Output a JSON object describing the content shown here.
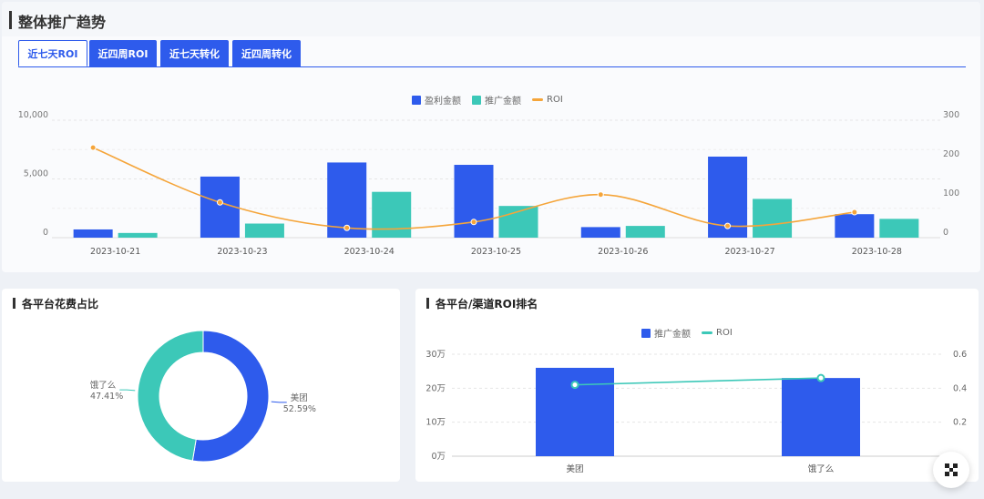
{
  "trend": {
    "title": "整体推广趋势",
    "tabs": [
      {
        "label": "近七天ROI",
        "active": true
      },
      {
        "label": "近四周ROI",
        "active": false
      },
      {
        "label": "近七天转化",
        "active": false
      },
      {
        "label": "近四周转化",
        "active": false
      }
    ],
    "legend": [
      "盈利金额",
      "推广金额",
      "ROI"
    ]
  },
  "pie_card": {
    "title": "各平台花费占比"
  },
  "rank_card": {
    "title": "各平台/渠道ROI排名",
    "legend": [
      "推广金额",
      "ROI"
    ]
  },
  "colors": {
    "blue": "#2e5bec",
    "teal": "#3cc8b8",
    "orange": "#f5a53a"
  },
  "chart_data": [
    {
      "type": "bar",
      "categories": [
        "2023-10-21",
        "2023-10-23",
        "2023-10-24",
        "2023-10-25",
        "2023-10-26",
        "2023-10-27",
        "2023-10-28"
      ],
      "series": [
        {
          "name": "盈利金额",
          "type": "bar",
          "axis": "left",
          "values": [
            700,
            5200,
            6400,
            6200,
            900,
            6900,
            2000
          ]
        },
        {
          "name": "推广金额",
          "type": "bar",
          "axis": "left",
          "values": [
            400,
            1200,
            3900,
            2700,
            1000,
            3300,
            1600
          ]
        },
        {
          "name": "ROI",
          "type": "line",
          "axis": "right",
          "values": [
            230,
            90,
            25,
            40,
            110,
            30,
            65
          ]
        }
      ],
      "y_left": {
        "ticks": [
          "0",
          "5,000",
          "10,000"
        ],
        "range": [
          0,
          10000
        ]
      },
      "y_right": {
        "ticks": [
          "0",
          "100",
          "200",
          "300"
        ],
        "range": [
          0,
          300
        ]
      }
    },
    {
      "type": "pie",
      "donut": true,
      "slices": [
        {
          "name": "美团",
          "value": 52.59,
          "label": "52.59%"
        },
        {
          "name": "饿了么",
          "value": 47.41,
          "label": "47.41%"
        }
      ]
    },
    {
      "type": "bar",
      "categories": [
        "美团",
        "饿了么"
      ],
      "series": [
        {
          "name": "推广金额",
          "type": "bar",
          "axis": "left",
          "values": [
            260000,
            230000
          ]
        },
        {
          "name": "ROI",
          "type": "line",
          "axis": "right",
          "values": [
            0.42,
            0.46
          ]
        }
      ],
      "y_left": {
        "ticks": [
          "0万",
          "10万",
          "20万",
          "30万"
        ],
        "range": [
          0,
          300000
        ]
      },
      "y_right": {
        "ticks": [
          "0",
          "0.2",
          "0.4",
          "0.6"
        ],
        "range": [
          0,
          0.6
        ]
      }
    }
  ]
}
